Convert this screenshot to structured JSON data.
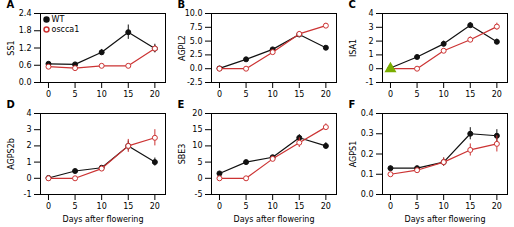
{
  "chart_data": [
    {
      "type": "line",
      "title": "A",
      "y_label": "SS1",
      "x": [
        0,
        5,
        10,
        15,
        20
      ],
      "xlim": [
        -1.5,
        22
      ],
      "xticks": [
        0,
        5,
        10,
        15,
        20
      ],
      "ylim": [
        0,
        2.4
      ],
      "yticks": [
        {
          "value": 0,
          "label": "0.0"
        },
        0.6,
        1.2,
        1.8,
        2.4
      ],
      "grid": false,
      "legend": "upper left",
      "series": [
        {
          "name": "WT",
          "color": "#111111",
          "marker": "filled_circle",
          "values": [
            0.65,
            0.63,
            1.05,
            1.75,
            1.18
          ],
          "errors": [
            0.05,
            0.05,
            0.1,
            0.25,
            0.15
          ]
        },
        {
          "name": "oscca1",
          "color": "#cc3333",
          "marker": "open_circle",
          "values": [
            0.55,
            0.5,
            0.58,
            0.58,
            1.18
          ],
          "errors": [
            0.05,
            0.05,
            0.05,
            0.05,
            0.1
          ]
        }
      ]
    },
    {
      "type": "line",
      "title": "B",
      "y_label": "AGPL2",
      "x": [
        0,
        5,
        10,
        15,
        20
      ],
      "xlim": [
        -1.5,
        22
      ],
      "xticks": [
        0,
        5,
        10,
        15,
        20
      ],
      "ylim": [
        -2.5,
        10
      ],
      "yticks": [
        -2.5,
        {
          "value": 0,
          "label": "0.0"
        },
        2.5,
        {
          "value": 5,
          "label": "5.0"
        },
        7.5,
        {
          "value": 10,
          "label": "10.0"
        }
      ],
      "grid": false,
      "legend": false,
      "series": [
        {
          "name": "WT",
          "color": "#111111",
          "marker": "filled_circle",
          "values": [
            0.05,
            1.7,
            3.5,
            6.2,
            3.8
          ],
          "errors": [
            0.05,
            0.15,
            0.25,
            0.35,
            0.3
          ]
        },
        {
          "name": "oscca1",
          "color": "#cc3333",
          "marker": "open_circle",
          "values": [
            0.0,
            0.0,
            3.0,
            6.3,
            7.8
          ],
          "errors": [
            0.05,
            0.05,
            0.3,
            0.45,
            0.4
          ]
        }
      ]
    },
    {
      "type": "line",
      "title": "C",
      "y_label": "ISA1",
      "x": [
        0,
        5,
        10,
        15,
        20
      ],
      "xlim": [
        -1.5,
        22
      ],
      "xticks": [
        0,
        5,
        10,
        15,
        20
      ],
      "ylim": [
        -1,
        4
      ],
      "yticks": [
        -1,
        0,
        1,
        2,
        3,
        4
      ],
      "grid": false,
      "legend": false,
      "series": [
        {
          "name": "WT",
          "color": "#111111",
          "marker": "filled_circle",
          "values": [
            0.05,
            0.85,
            1.8,
            3.15,
            1.95
          ],
          "errors": [
            0.05,
            0.1,
            0.2,
            0.2,
            0.2
          ]
        },
        {
          "name": "oscca1",
          "color": "#cc3333",
          "marker": "open_circle",
          "values": [
            0.0,
            0.0,
            1.3,
            2.1,
            3.05
          ],
          "errors": [
            0.05,
            0.05,
            0.15,
            0.2,
            0.25
          ]
        }
      ],
      "points": [
        {
          "x": 0,
          "y": 0.0,
          "color": "#7aad00",
          "marker": "triangle"
        }
      ]
    },
    {
      "type": "line",
      "title": "D",
      "y_label": "AGPS2b",
      "x_label": "Days after flowering",
      "x": [
        0,
        5,
        10,
        15,
        20
      ],
      "xlim": [
        -1.5,
        22
      ],
      "xticks": [
        0,
        5,
        10,
        15,
        20
      ],
      "ylim": [
        -1,
        4
      ],
      "yticks": [
        -1,
        0,
        1,
        2,
        3,
        4
      ],
      "grid": false,
      "legend": false,
      "series": [
        {
          "name": "WT",
          "color": "#111111",
          "marker": "filled_circle",
          "values": [
            0.02,
            0.45,
            0.65,
            2.0,
            1.0
          ],
          "errors": [
            0.02,
            0.08,
            0.1,
            0.3,
            0.25
          ]
        },
        {
          "name": "oscca1",
          "color": "#cc3333",
          "marker": "open_circle",
          "values": [
            0.0,
            0.0,
            0.6,
            2.0,
            2.5
          ],
          "errors": [
            0.02,
            0.02,
            0.15,
            0.4,
            0.5
          ]
        }
      ]
    },
    {
      "type": "line",
      "title": "E",
      "y_label": "SBE3",
      "x_label": "Days after flowering",
      "x": [
        0,
        5,
        10,
        15,
        20
      ],
      "xlim": [
        -1.5,
        22
      ],
      "xticks": [
        0,
        5,
        10,
        15,
        20
      ],
      "ylim": [
        -5,
        20
      ],
      "yticks": [
        -5,
        0,
        5,
        10,
        15,
        20
      ],
      "grid": false,
      "legend": false,
      "series": [
        {
          "name": "WT",
          "color": "#111111",
          "marker": "filled_circle",
          "values": [
            1.5,
            5.0,
            6.5,
            12.5,
            10.0
          ],
          "errors": [
            0.2,
            0.4,
            0.5,
            1.0,
            1.0
          ]
        },
        {
          "name": "oscca1",
          "color": "#cc3333",
          "marker": "open_circle",
          "values": [
            0.0,
            0.0,
            6.0,
            11.0,
            15.8
          ],
          "errors": [
            0.1,
            0.1,
            0.8,
            1.5,
            1.0
          ]
        }
      ]
    },
    {
      "type": "line",
      "title": "F",
      "y_label": "AGPS1",
      "x_label": "Days after flowering",
      "x": [
        0,
        5,
        10,
        15,
        20
      ],
      "xlim": [
        -1.5,
        22
      ],
      "xticks": [
        0,
        5,
        10,
        15,
        20
      ],
      "ylim": [
        0,
        0.4
      ],
      "yticks": [
        {
          "value": 0,
          "label": "0.0"
        },
        0.1,
        0.2,
        0.3,
        0.4
      ],
      "grid": false,
      "legend": false,
      "series": [
        {
          "name": "WT",
          "color": "#111111",
          "marker": "filled_circle",
          "values": [
            0.13,
            0.13,
            0.16,
            0.3,
            0.29
          ],
          "errors": [
            0.01,
            0.01,
            0.02,
            0.03,
            0.03
          ]
        },
        {
          "name": "oscca1",
          "color": "#cc3333",
          "marker": "open_circle",
          "values": [
            0.1,
            0.12,
            0.16,
            0.22,
            0.25
          ],
          "errors": [
            0.01,
            0.01,
            0.02,
            0.03,
            0.04
          ]
        }
      ]
    }
  ]
}
